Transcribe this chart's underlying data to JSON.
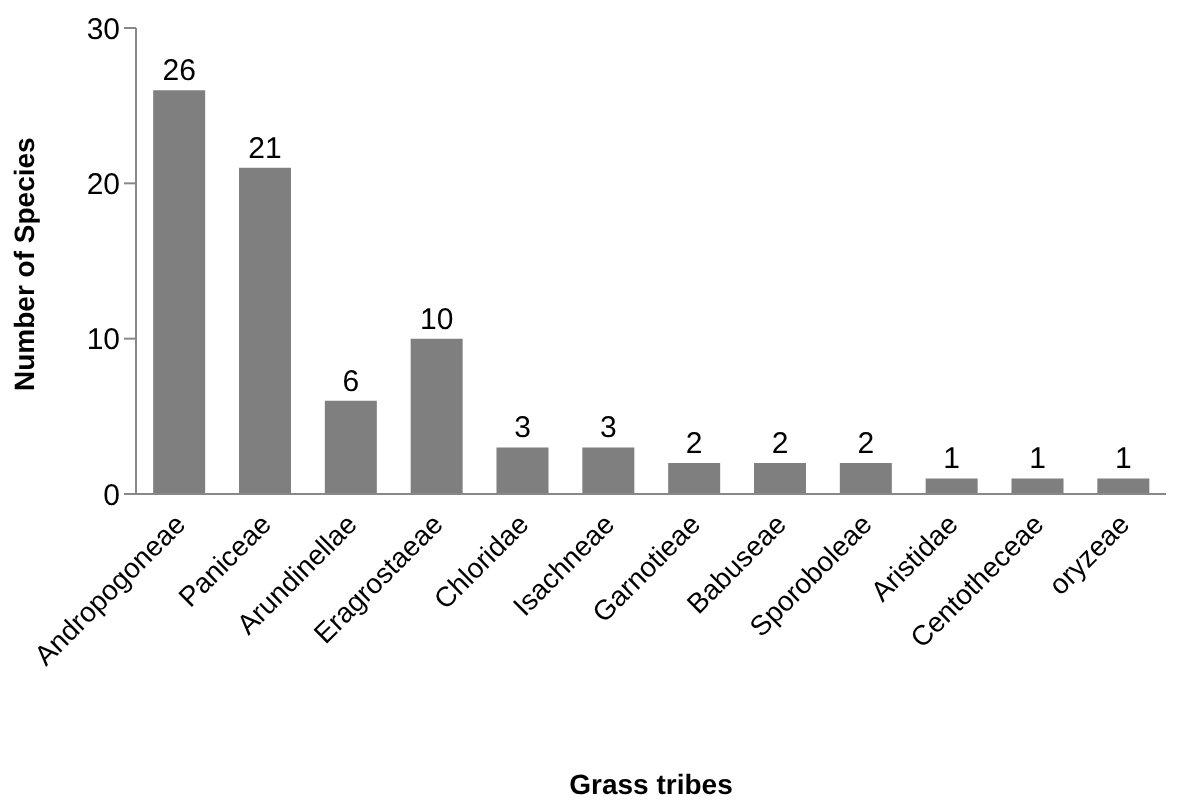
{
  "chart_data": {
    "type": "bar",
    "xlabel": "Grass tribes",
    "ylabel": "Number of Species",
    "categories": [
      "Andropogoneae",
      "Paniceae",
      "Arundinellae",
      "Eragrostaeae",
      "Chloridae",
      "Isachneae",
      "Garnotieae",
      "Babuseae",
      "Sporoboleae",
      "Aristidae",
      "Centotheceae",
      "oryzeae"
    ],
    "values": [
      26,
      21,
      6,
      10,
      3,
      3,
      2,
      2,
      2,
      1,
      1,
      1
    ],
    "color": "#7f7f7f",
    "ylim": [
      0,
      30
    ],
    "yticks": [
      0,
      10,
      20,
      30
    ],
    "grid": false,
    "legend": false,
    "data_labels": true
  }
}
